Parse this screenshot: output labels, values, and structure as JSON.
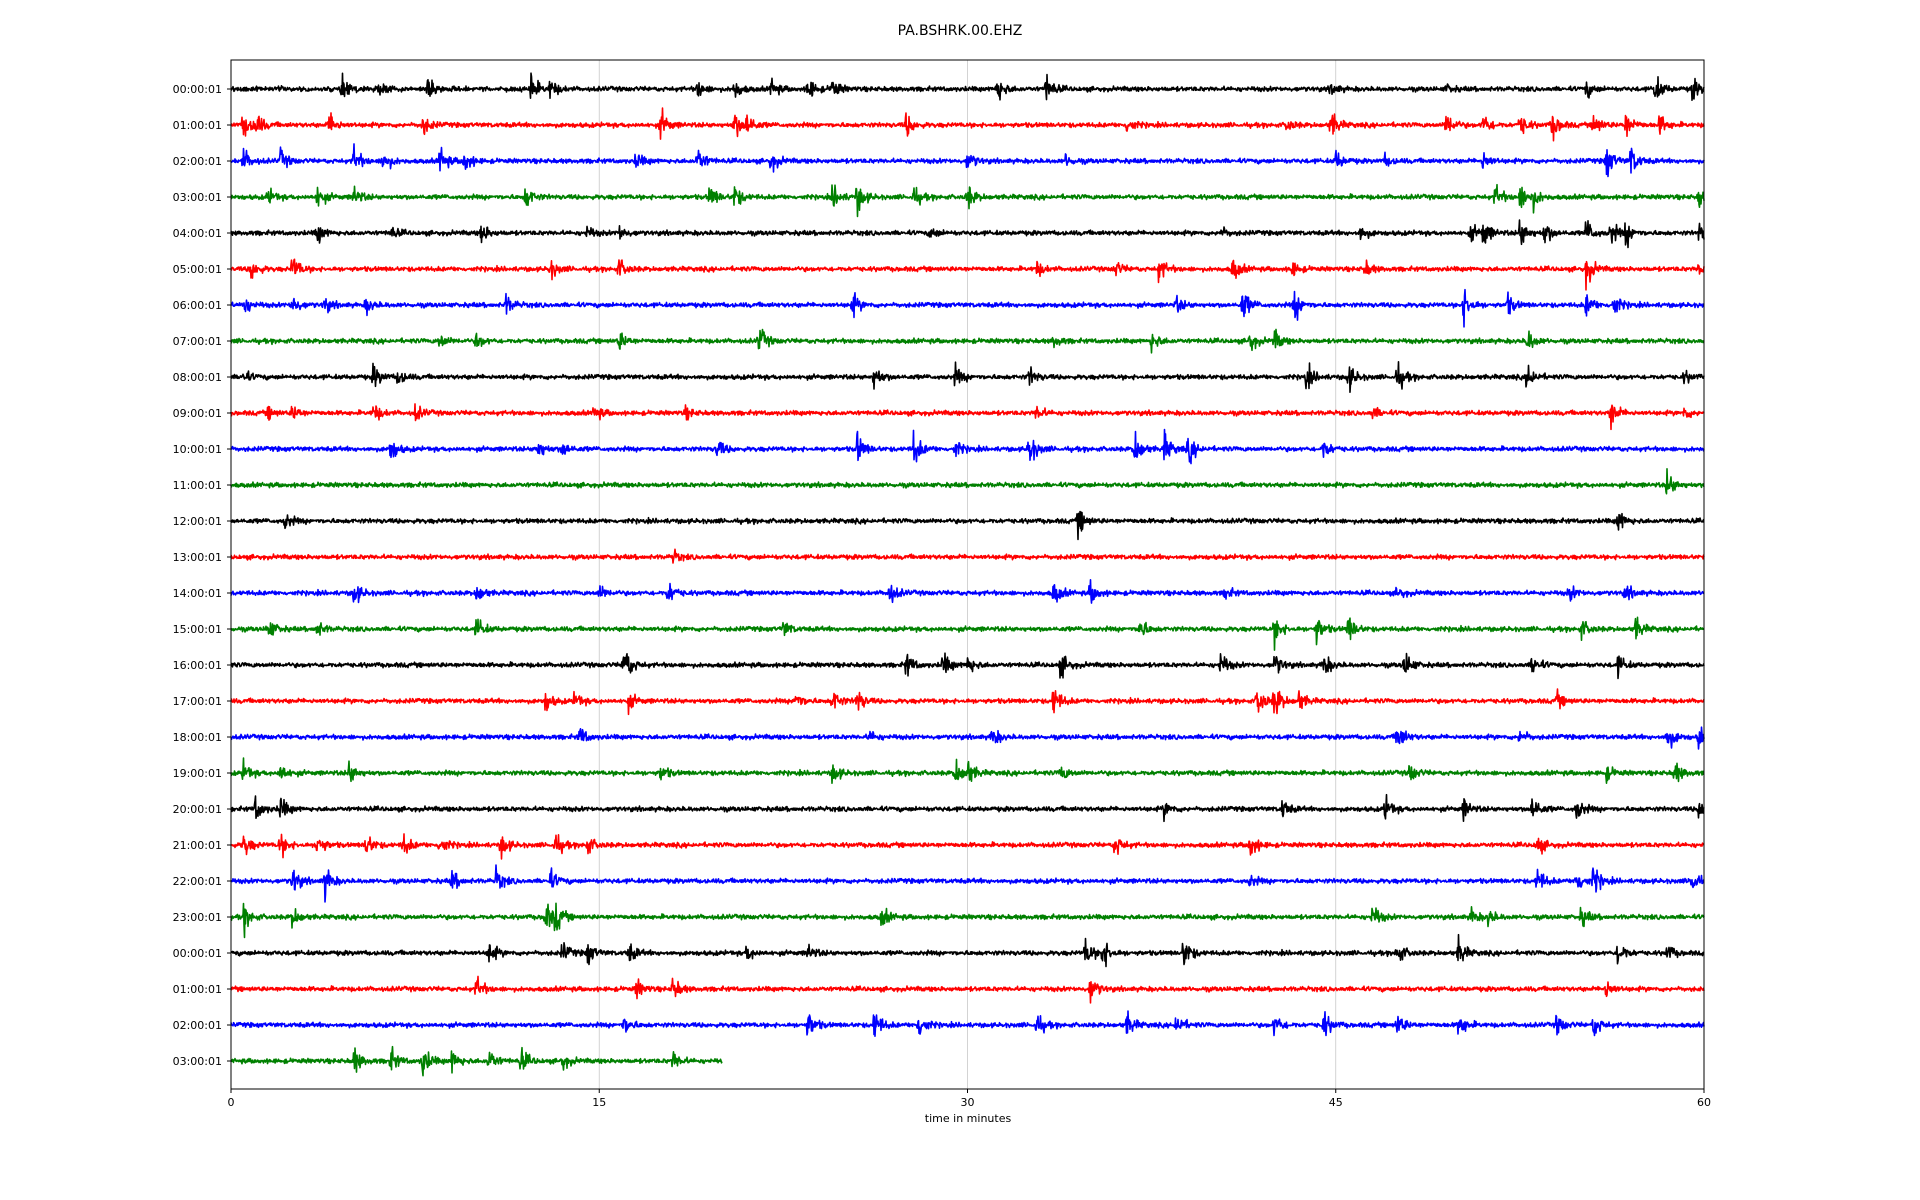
{
  "chart_data": {
    "type": "line",
    "title": "PA.BSHRK.00.EHZ",
    "xlabel": "time in minutes",
    "ylabel": "",
    "xlim": [
      0,
      60
    ],
    "x_ticks": [
      "0",
      "15",
      "30",
      "45",
      "60"
    ],
    "grid": "vertical",
    "row_labels": [
      "00:00:01",
      "01:00:01",
      "02:00:01",
      "03:00:01",
      "04:00:01",
      "05:00:01",
      "06:00:01",
      "07:00:01",
      "08:00:01",
      "09:00:01",
      "10:00:01",
      "11:00:01",
      "12:00:01",
      "13:00:01",
      "14:00:01",
      "15:00:01",
      "16:00:01",
      "17:00:01",
      "18:00:01",
      "19:00:01",
      "20:00:01",
      "21:00:01",
      "22:00:01",
      "23:00:01",
      "00:00:01",
      "01:00:01",
      "02:00:01",
      "03:00:01"
    ],
    "colors": [
      "#000000",
      "#ff0000",
      "#0000ff",
      "#008000"
    ],
    "last_row_end_minute": 20,
    "events": [
      [
        [
          4.5,
          12
        ],
        [
          6,
          8
        ],
        [
          8,
          10
        ],
        [
          12.2,
          14
        ],
        [
          13,
          10
        ],
        [
          19,
          9
        ],
        [
          20.5,
          10
        ],
        [
          22,
          9
        ],
        [
          23.5,
          12
        ],
        [
          24.5,
          10
        ],
        [
          31.2,
          14
        ],
        [
          33.2,
          14
        ],
        [
          44.8,
          6
        ],
        [
          49.5,
          4
        ],
        [
          55.2,
          8
        ],
        [
          58,
          14
        ],
        [
          59.5,
          12
        ]
      ],
      [
        [
          0.5,
          14
        ],
        [
          1,
          12
        ],
        [
          4,
          12
        ],
        [
          7.8,
          10
        ],
        [
          17.5,
          14
        ],
        [
          20.5,
          14
        ],
        [
          21,
          12
        ],
        [
          27.5,
          12
        ],
        [
          36.5,
          8
        ],
        [
          43,
          6
        ],
        [
          44.8,
          14
        ],
        [
          49.5,
          14
        ],
        [
          51,
          12
        ],
        [
          52.5,
          12
        ],
        [
          53.8,
          14
        ],
        [
          55.5,
          12
        ],
        [
          56.8,
          14
        ],
        [
          58.2,
          10
        ]
      ],
      [
        [
          0.5,
          12
        ],
        [
          2,
          10
        ],
        [
          5,
          14
        ],
        [
          6.2,
          12
        ],
        [
          8.5,
          14
        ],
        [
          9.5,
          12
        ],
        [
          16.5,
          8
        ],
        [
          19,
          14
        ],
        [
          22,
          10
        ],
        [
          30,
          10
        ],
        [
          34,
          6
        ],
        [
          45,
          10
        ],
        [
          47,
          6
        ],
        [
          51,
          10
        ],
        [
          56,
          18
        ],
        [
          57,
          16
        ]
      ],
      [
        [
          1.5,
          8
        ],
        [
          3.5,
          12
        ],
        [
          5,
          10
        ],
        [
          12,
          12
        ],
        [
          19.5,
          12
        ],
        [
          20.5,
          12
        ],
        [
          24.5,
          12
        ],
        [
          25.5,
          16
        ],
        [
          27.8,
          10
        ],
        [
          30,
          12
        ],
        [
          51.5,
          12
        ],
        [
          52.5,
          14
        ],
        [
          53,
          10
        ],
        [
          59.8,
          12
        ]
      ],
      [
        [
          3.5,
          10
        ],
        [
          6.5,
          6
        ],
        [
          10.2,
          10
        ],
        [
          14.5,
          6
        ],
        [
          15.8,
          8
        ],
        [
          28.5,
          6
        ],
        [
          40.3,
          6
        ],
        [
          46,
          8
        ],
        [
          50.5,
          8
        ],
        [
          51,
          14
        ],
        [
          52.5,
          16
        ],
        [
          53.5,
          12
        ],
        [
          55.2,
          14
        ],
        [
          56.2,
          12
        ],
        [
          56.8,
          12
        ],
        [
          59.8,
          10
        ]
      ],
      [
        [
          0.8,
          12
        ],
        [
          2.5,
          14
        ],
        [
          13,
          10
        ],
        [
          15.8,
          10
        ],
        [
          32.8,
          8
        ],
        [
          36,
          8
        ],
        [
          37.8,
          12
        ],
        [
          40.8,
          12
        ],
        [
          43.2,
          8
        ],
        [
          46.2,
          8
        ],
        [
          55.2,
          16
        ],
        [
          59.8,
          8
        ]
      ],
      [
        [
          0.5,
          10
        ],
        [
          2.5,
          10
        ],
        [
          3.8,
          8
        ],
        [
          5.5,
          8
        ],
        [
          11.2,
          10
        ],
        [
          25.3,
          12
        ],
        [
          38.5,
          8
        ],
        [
          41.2,
          16
        ],
        [
          43.3,
          16
        ],
        [
          50.2,
          18
        ],
        [
          52,
          10
        ],
        [
          55.2,
          12
        ],
        [
          56.3,
          12
        ]
      ],
      [
        [
          8.5,
          8
        ],
        [
          10,
          8
        ],
        [
          15.8,
          10
        ],
        [
          21.5,
          14
        ],
        [
          33.5,
          6
        ],
        [
          37.5,
          10
        ],
        [
          41.5,
          10
        ],
        [
          42.5,
          10
        ],
        [
          52.8,
          12
        ]
      ],
      [
        [
          0.5,
          6
        ],
        [
          5.8,
          12
        ],
        [
          6.8,
          8
        ],
        [
          26.2,
          12
        ],
        [
          29.5,
          10
        ],
        [
          32.5,
          10
        ],
        [
          43.8,
          12
        ],
        [
          45.5,
          14
        ],
        [
          47.5,
          14
        ],
        [
          52.8,
          14
        ],
        [
          59.2,
          6
        ]
      ],
      [
        [
          1.5,
          6
        ],
        [
          2.5,
          8
        ],
        [
          5.8,
          10
        ],
        [
          7.5,
          8
        ],
        [
          14.8,
          8
        ],
        [
          18.5,
          6
        ],
        [
          32.8,
          8
        ],
        [
          46.5,
          6
        ],
        [
          56.2,
          14
        ],
        [
          59.2,
          6
        ]
      ],
      [
        [
          6.5,
          12
        ],
        [
          12.5,
          10
        ],
        [
          13.5,
          8
        ],
        [
          19.8,
          10
        ],
        [
          25.5,
          16
        ],
        [
          27.8,
          18
        ],
        [
          29.5,
          8
        ],
        [
          32.5,
          18
        ],
        [
          36.8,
          18
        ],
        [
          38,
          16
        ],
        [
          39,
          14
        ],
        [
          44.5,
          10
        ]
      ],
      [
        [
          58.5,
          14
        ]
      ],
      [
        [
          2.2,
          8
        ],
        [
          34.5,
          14
        ],
        [
          56.5,
          12
        ]
      ],
      [
        [
          18,
          6
        ]
      ],
      [
        [
          5,
          12
        ],
        [
          10,
          10
        ],
        [
          15,
          8
        ],
        [
          17.8,
          12
        ],
        [
          26.8,
          12
        ],
        [
          33.5,
          12
        ],
        [
          35,
          12
        ],
        [
          40.5,
          6
        ],
        [
          47.5,
          6
        ],
        [
          54.5,
          8
        ],
        [
          56.8,
          8
        ]
      ],
      [
        [
          1.5,
          12
        ],
        [
          3.5,
          8
        ],
        [
          10,
          12
        ],
        [
          22.5,
          8
        ],
        [
          37,
          12
        ],
        [
          42.5,
          14
        ],
        [
          44.2,
          14
        ],
        [
          45.5,
          14
        ],
        [
          55,
          10
        ],
        [
          57.2,
          12
        ]
      ],
      [
        [
          16,
          22
        ],
        [
          27.5,
          12
        ],
        [
          29,
          12
        ],
        [
          30,
          10
        ],
        [
          33.8,
          12
        ],
        [
          40.3,
          12
        ],
        [
          42.5,
          12
        ],
        [
          44.5,
          12
        ],
        [
          47.8,
          14
        ],
        [
          53,
          10
        ],
        [
          56.5,
          10
        ]
      ],
      [
        [
          12.8,
          10
        ],
        [
          14,
          8
        ],
        [
          16.2,
          8
        ],
        [
          23,
          10
        ],
        [
          24.5,
          12
        ],
        [
          25.5,
          12
        ],
        [
          33.5,
          16
        ],
        [
          41.8,
          16
        ],
        [
          42.5,
          18
        ],
        [
          43.5,
          10
        ],
        [
          54,
          8
        ]
      ],
      [
        [
          14.2,
          10
        ],
        [
          26,
          6
        ],
        [
          31,
          10
        ],
        [
          47.5,
          16
        ],
        [
          52.5,
          8
        ],
        [
          58.5,
          14
        ],
        [
          59.8,
          14
        ]
      ],
      [
        [
          0.5,
          10
        ],
        [
          2,
          10
        ],
        [
          4.8,
          12
        ],
        [
          17.5,
          8
        ],
        [
          24.5,
          10
        ],
        [
          29.5,
          14
        ],
        [
          30,
          12
        ],
        [
          33.8,
          8
        ],
        [
          48,
          10
        ],
        [
          56,
          8
        ],
        [
          58.8,
          12
        ]
      ],
      [
        [
          1,
          12
        ],
        [
          2,
          12
        ],
        [
          38,
          8
        ],
        [
          42.8,
          10
        ],
        [
          47,
          12
        ],
        [
          50.2,
          10
        ],
        [
          53,
          14
        ],
        [
          54.8,
          12
        ],
        [
          59.8,
          12
        ]
      ],
      [
        [
          0.5,
          12
        ],
        [
          2,
          12
        ],
        [
          3.5,
          12
        ],
        [
          5.5,
          12
        ],
        [
          7,
          12
        ],
        [
          8.5,
          10
        ],
        [
          11,
          12
        ],
        [
          13.2,
          12
        ],
        [
          14.5,
          10
        ],
        [
          36,
          12
        ],
        [
          41.5,
          14
        ],
        [
          53.2,
          10
        ]
      ],
      [
        [
          2.5,
          14
        ],
        [
          3.8,
          16
        ],
        [
          9,
          10
        ],
        [
          10.8,
          12
        ],
        [
          13,
          10
        ],
        [
          41.5,
          6
        ],
        [
          53.2,
          14
        ],
        [
          54.8,
          14
        ],
        [
          55.5,
          14
        ],
        [
          59.5,
          14
        ]
      ],
      [
        [
          0.5,
          14
        ],
        [
          2.5,
          10
        ],
        [
          12.8,
          16
        ],
        [
          13.2,
          14
        ],
        [
          26.5,
          10
        ],
        [
          46.5,
          12
        ],
        [
          50.5,
          8
        ],
        [
          51.2,
          8
        ],
        [
          55,
          10
        ]
      ],
      [
        [
          10.5,
          12
        ],
        [
          13.5,
          10
        ],
        [
          14.5,
          12
        ],
        [
          16.2,
          10
        ],
        [
          21,
          8
        ],
        [
          23.5,
          8
        ],
        [
          34.8,
          14
        ],
        [
          35.5,
          16
        ],
        [
          38.8,
          16
        ],
        [
          47.5,
          12
        ],
        [
          50,
          14
        ],
        [
          56.5,
          14
        ],
        [
          58.5,
          8
        ]
      ],
      [
        [
          10,
          12
        ],
        [
          16.5,
          10
        ],
        [
          18,
          12
        ],
        [
          35,
          14
        ],
        [
          56,
          10
        ]
      ],
      [
        [
          16,
          10
        ],
        [
          23.5,
          14
        ],
        [
          26.2,
          16
        ],
        [
          28,
          14
        ],
        [
          32.8,
          12
        ],
        [
          36.5,
          12
        ],
        [
          38.5,
          12
        ],
        [
          42.5,
          12
        ],
        [
          44.5,
          14
        ],
        [
          47.5,
          12
        ],
        [
          50,
          14
        ],
        [
          54,
          10
        ],
        [
          55.5,
          12
        ]
      ],
      [
        [
          5,
          14
        ],
        [
          6.5,
          12
        ],
        [
          7.8,
          16
        ],
        [
          9,
          12
        ],
        [
          10.5,
          12
        ],
        [
          11.8,
          12
        ],
        [
          13.5,
          8
        ],
        [
          18,
          10
        ]
      ]
    ]
  }
}
